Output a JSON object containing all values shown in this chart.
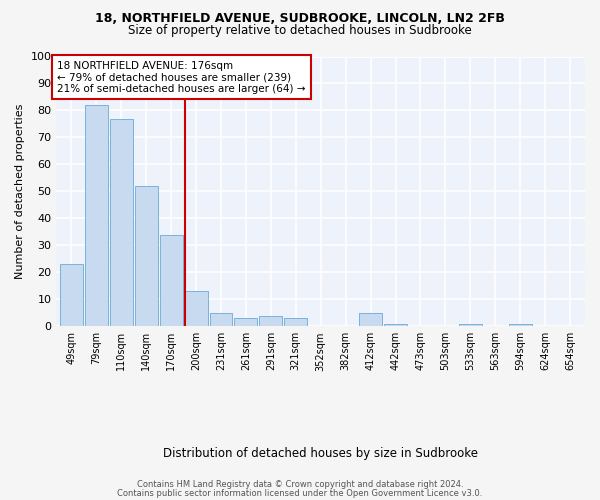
{
  "title1": "18, NORTHFIELD AVENUE, SUDBROOKE, LINCOLN, LN2 2FB",
  "title2": "Size of property relative to detached houses in Sudbrooke",
  "xlabel": "Distribution of detached houses by size in Sudbrooke",
  "ylabel": "Number of detached properties",
  "categories": [
    "49sqm",
    "79sqm",
    "110sqm",
    "140sqm",
    "170sqm",
    "200sqm",
    "231sqm",
    "261sqm",
    "291sqm",
    "321sqm",
    "352sqm",
    "382sqm",
    "412sqm",
    "442sqm",
    "473sqm",
    "503sqm",
    "533sqm",
    "563sqm",
    "594sqm",
    "624sqm",
    "654sqm"
  ],
  "values": [
    23,
    82,
    77,
    52,
    34,
    13,
    5,
    3,
    4,
    3,
    0,
    0,
    5,
    1,
    0,
    0,
    1,
    0,
    1,
    0,
    0
  ],
  "bar_color": "#c8daf0",
  "bar_edge_color": "#6aaad4",
  "background_color": "#eef2fa",
  "grid_color": "#ffffff",
  "vline_x_index": 4.55,
  "vline_color": "#cc0000",
  "annotation_text": "18 NORTHFIELD AVENUE: 176sqm\n← 79% of detached houses are smaller (239)\n21% of semi-detached houses are larger (64) →",
  "annotation_box_color": "#cc0000",
  "footer1": "Contains HM Land Registry data © Crown copyright and database right 2024.",
  "footer2": "Contains public sector information licensed under the Open Government Licence v3.0.",
  "ylim": [
    0,
    100
  ],
  "yticks": [
    0,
    10,
    20,
    30,
    40,
    50,
    60,
    70,
    80,
    90,
    100
  ],
  "fig_bg": "#f5f5f5"
}
